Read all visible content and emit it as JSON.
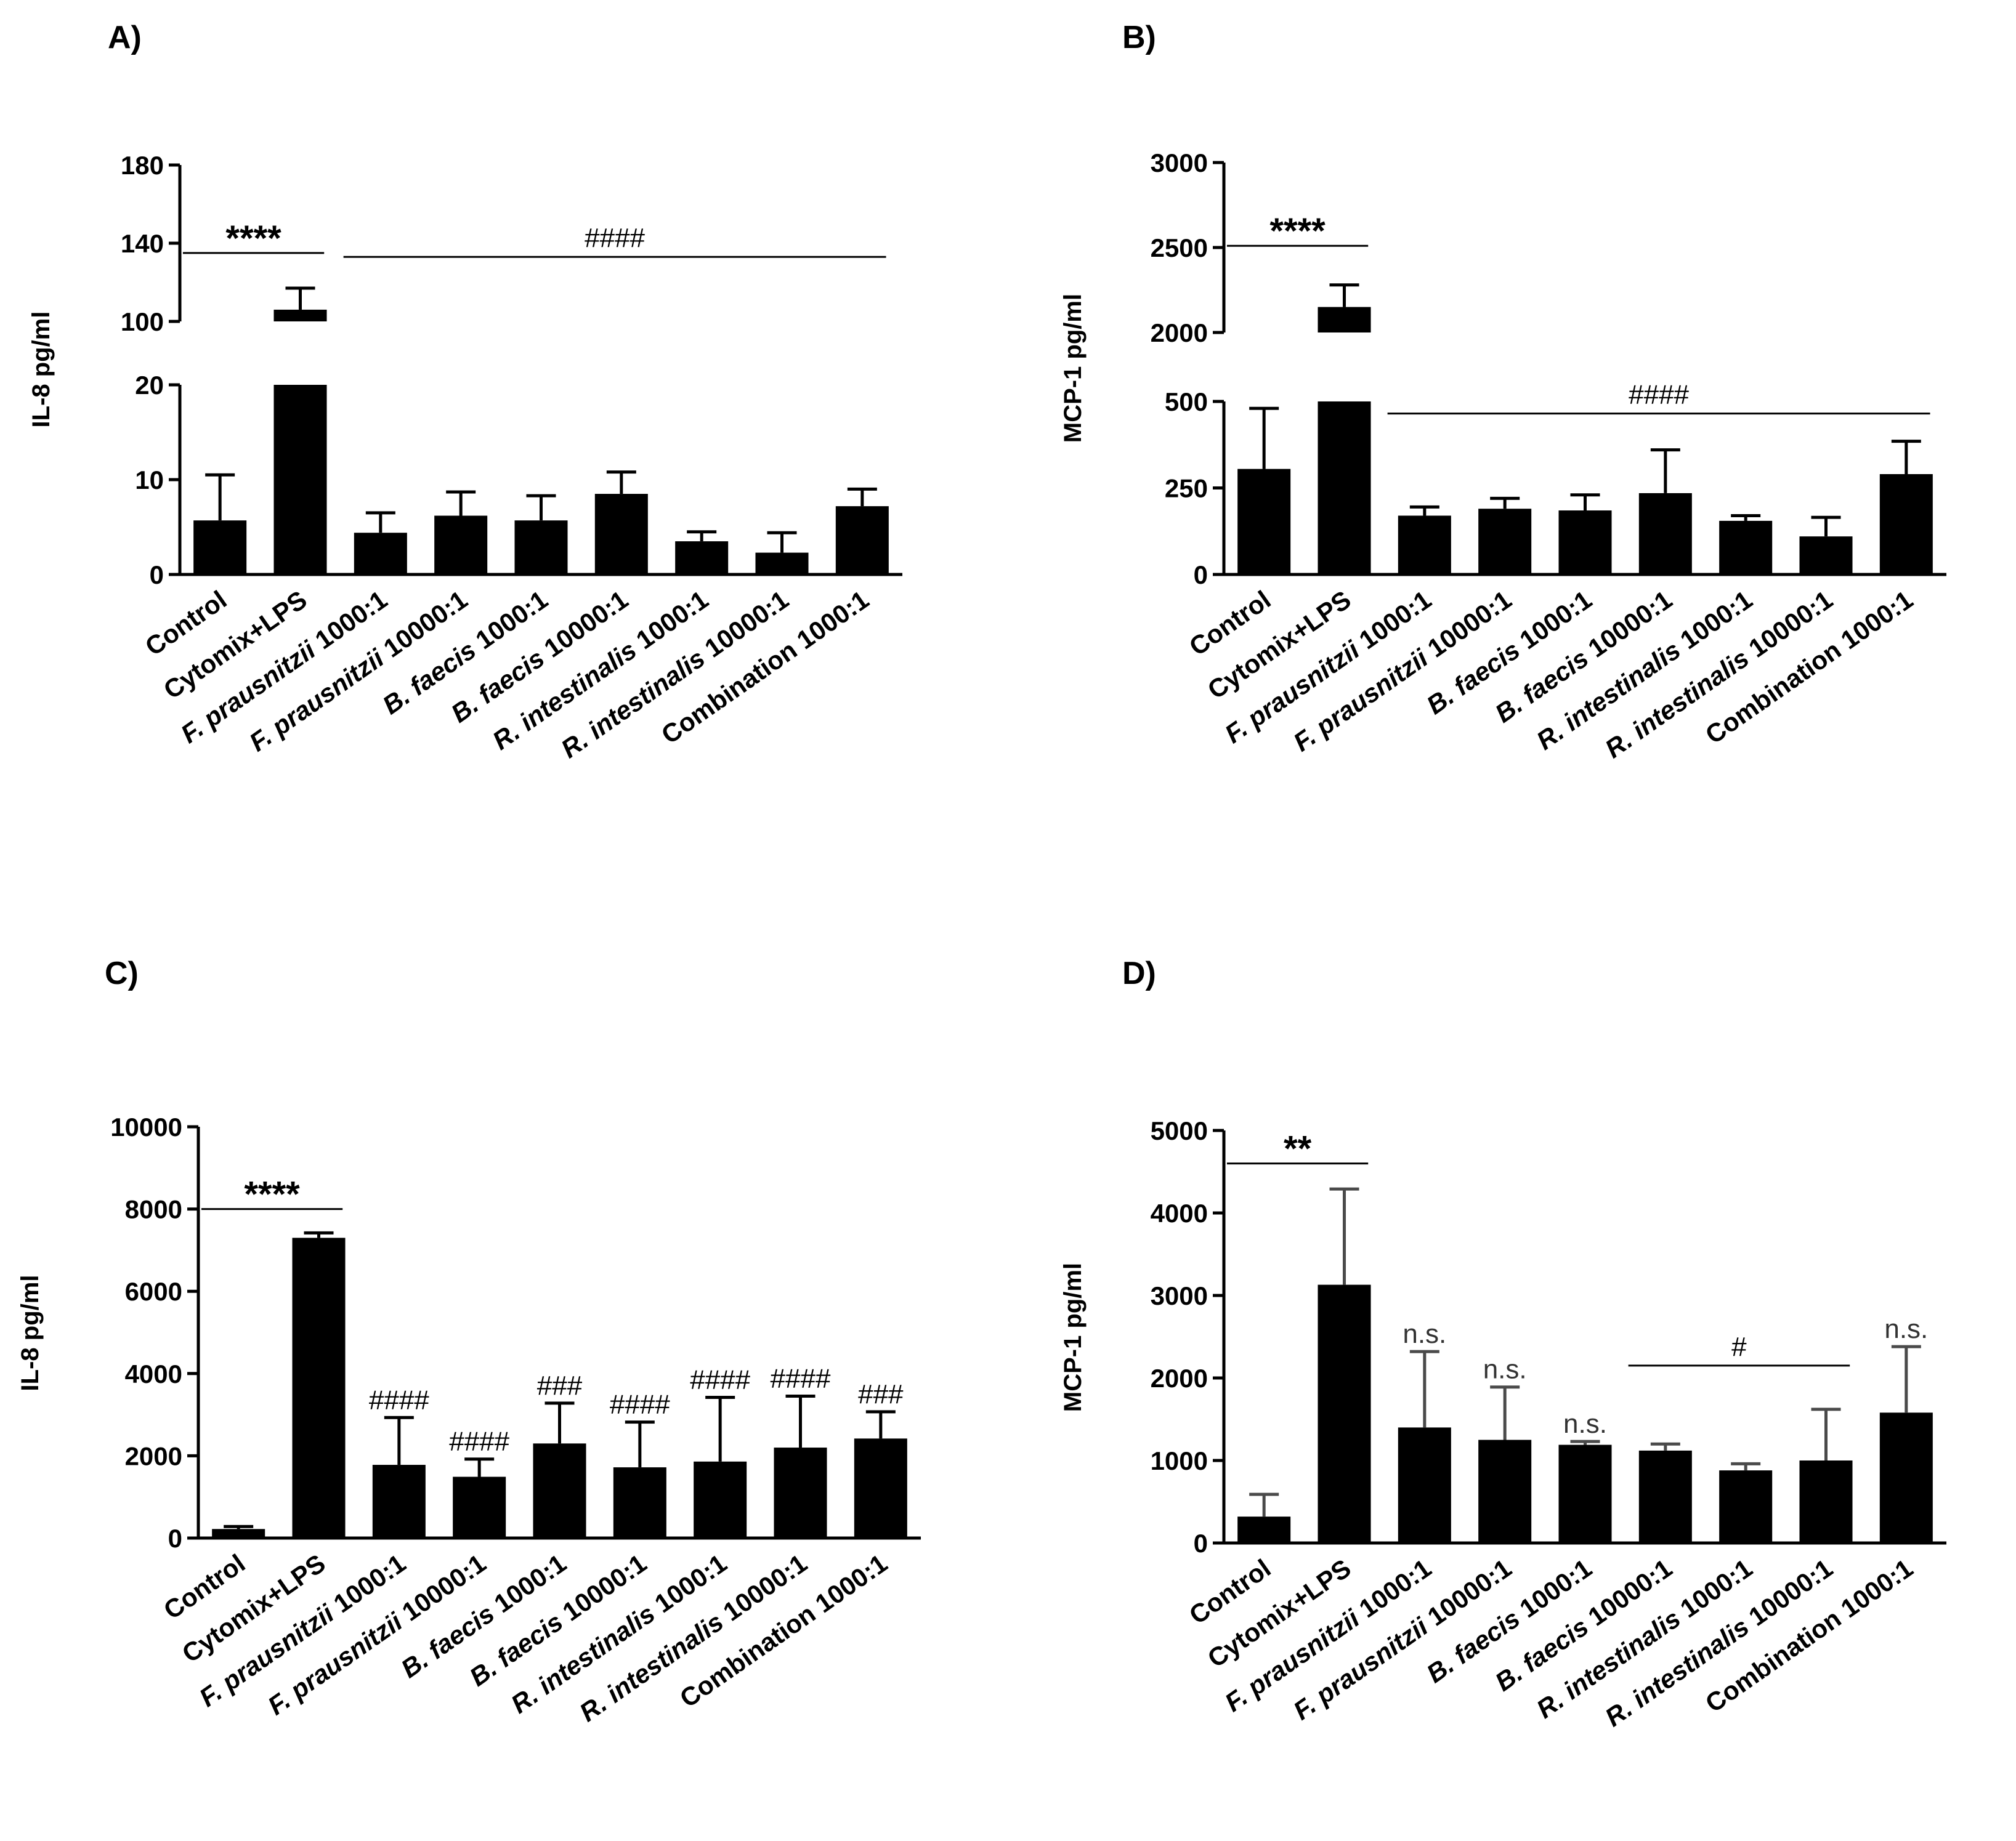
{
  "chart_data": [
    {
      "panel": "A)",
      "type": "bar",
      "ylabel": "IL-8 pg/ml",
      "categories": [
        "Control",
        "Cytomix+LPS",
        "F. prausnitzii 1000:1",
        "F. prausnitzii 10000:1",
        "B. faecis 1000:1",
        "B. faecis 10000:1",
        "R. intestinalis 1000:1",
        "R. intestinalis 10000:1",
        "Combination 1000:1"
      ],
      "values": [
        5.7,
        106,
        4.4,
        6.2,
        5.7,
        8.5,
        3.5,
        2.3,
        7.2
      ],
      "errors": [
        4.8,
        11,
        2.1,
        2.5,
        2.6,
        2.3,
        1.0,
        2.1,
        1.8
      ],
      "broken_axis": true,
      "lower_ticks": [
        "0",
        "10",
        "20"
      ],
      "upper_ticks": [
        "100",
        "140",
        "180"
      ],
      "lower_range": [
        0,
        20
      ],
      "upper_range": [
        100,
        180
      ],
      "annotations": [
        {
          "text": "****",
          "from": 0,
          "to": 1,
          "value": 135
        },
        {
          "text": "####",
          "from": 2,
          "to": 8,
          "value": 133
        }
      ]
    },
    {
      "panel": "B)",
      "type": "bar",
      "ylabel": "MCP-1 pg/ml",
      "categories": [
        "Control",
        "Cytomix+LPS",
        "F. prausnitzii 1000:1",
        "F. prausnitzii 10000:1",
        "B. faecis 1000:1",
        "B. faecis 10000:1",
        "R. intestinalis 1000:1",
        "R. intestinalis 10000:1",
        "Combination 1000:1"
      ],
      "values": [
        305,
        2150,
        170,
        190,
        185,
        235,
        155,
        110,
        290
      ],
      "errors": [
        175,
        130,
        25,
        30,
        45,
        125,
        15,
        55,
        95
      ],
      "broken_axis": true,
      "lower_ticks": [
        "0",
        "250",
        "500"
      ],
      "upper_ticks": [
        "2000",
        "2500",
        "3000"
      ],
      "lower_range": [
        0,
        500
      ],
      "upper_range": [
        2000,
        3000
      ],
      "annotations": [
        {
          "text": "****",
          "from": 0,
          "to": 1,
          "value": 2510
        },
        {
          "text": "####",
          "from": 2,
          "to": 8,
          "value": 465
        }
      ]
    },
    {
      "panel": "C)",
      "type": "bar",
      "ylabel": "IL-8 pg/ml",
      "categories": [
        "Control",
        "Cytomix+LPS",
        "F. prausnitzii 1000:1",
        "F. prausnitzii 10000:1",
        "B. faecis 1000:1",
        "B. faecis 10000:1",
        "R. intestinalis 1000:1",
        "R. intestinalis 10000:1",
        "Combination 1000:1"
      ],
      "values": [
        220,
        7300,
        1780,
        1490,
        2300,
        1720,
        1860,
        2200,
        2420
      ],
      "errors": [
        60,
        120,
        1150,
        430,
        980,
        1100,
        1560,
        1250,
        650
      ],
      "ylim": [
        0,
        10000
      ],
      "yticks": [
        "0",
        "2000",
        "4000",
        "6000",
        "8000",
        "10000"
      ],
      "bar_labels": [
        "",
        "",
        "####",
        "####",
        "###",
        "####",
        "####",
        "####",
        "###"
      ],
      "annotations": [
        {
          "text": "****",
          "from": 0,
          "to": 1,
          "value": 8000
        }
      ]
    },
    {
      "panel": "D)",
      "type": "bar",
      "ylabel": "MCP-1 pg/ml",
      "categories": [
        "Control",
        "Cytomix+LPS",
        "F. prausnitzii 1000:1",
        "F. prausnitzii 10000:1",
        "B. faecis 1000:1",
        "B. faecis 10000:1",
        "R. intestinalis 1000:1",
        "R. intestinalis 10000:1",
        "Combination 1000:1"
      ],
      "values": [
        320,
        3130,
        1400,
        1250,
        1190,
        1120,
        880,
        1000,
        1580
      ],
      "errors": [
        270,
        1160,
        920,
        640,
        40,
        80,
        80,
        620,
        800
      ],
      "ylim": [
        0,
        5000
      ],
      "yticks": [
        "0",
        "1000",
        "2000",
        "3000",
        "4000",
        "5000"
      ],
      "bar_labels": [
        "",
        "",
        "n.s.",
        "n.s.",
        "n.s.",
        "",
        "",
        "",
        "n.s."
      ],
      "annotations": [
        {
          "text": "**",
          "from": 0,
          "to": 1,
          "value": 4600
        },
        {
          "text": "#",
          "from": 5,
          "to": 7,
          "value": 2150
        }
      ]
    }
  ]
}
